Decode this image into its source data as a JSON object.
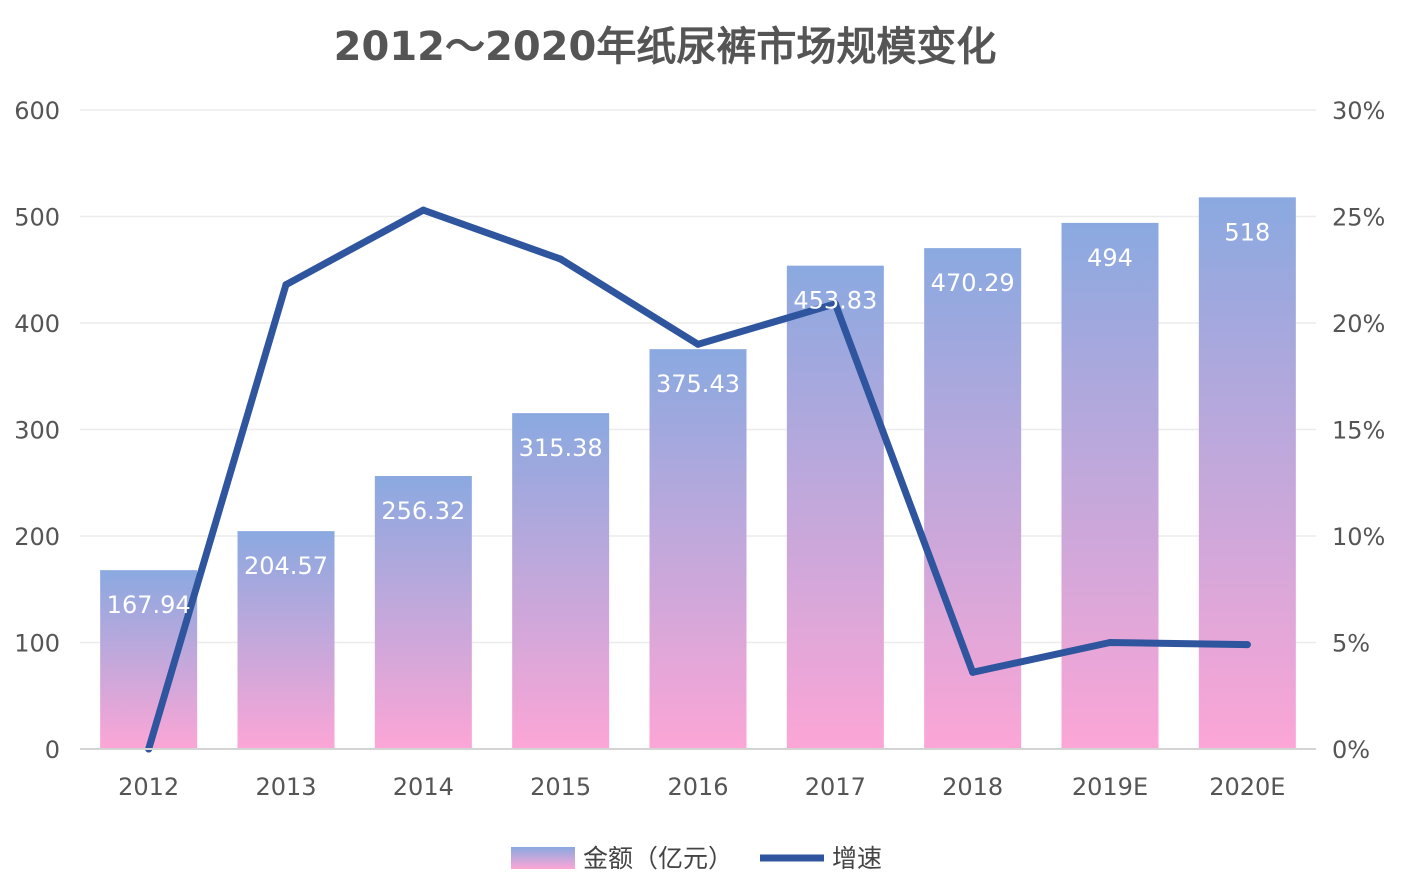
{
  "chart_data": {
    "type": "bar",
    "title": "2012～2020年纸尿裤市场规模变化",
    "categories": [
      "2012",
      "2013",
      "2014",
      "2015",
      "2016",
      "2017",
      "2018",
      "2019E",
      "2020E"
    ],
    "series": [
      {
        "name": "金额（亿元）",
        "type": "bar",
        "axis": "left",
        "values": [
          167.94,
          204.57,
          256.32,
          315.38,
          375.43,
          453.83,
          470.29,
          494,
          518
        ],
        "data_labels": [
          "167.94",
          "204.57",
          "256.32",
          "315.38",
          "375.43",
          "453.83",
          "470.29",
          "494",
          "518"
        ],
        "color_top": "#8aa9e0",
        "color_bottom": "#fca6d6"
      },
      {
        "name": "增速",
        "type": "line",
        "axis": "right",
        "values": [
          0,
          21.8,
          25.3,
          23.0,
          19.0,
          20.9,
          3.6,
          5.0,
          4.9
        ],
        "color": "#2f559e"
      }
    ],
    "y_left": {
      "range": [
        0,
        600
      ],
      "ticks": [
        0,
        100,
        200,
        300,
        400,
        500,
        600
      ],
      "tick_labels": [
        "0",
        "100",
        "200",
        "300",
        "400",
        "500",
        "600"
      ]
    },
    "y_right": {
      "range": [
        0,
        30
      ],
      "ticks": [
        0,
        5,
        10,
        15,
        20,
        25,
        30
      ],
      "tick_labels": [
        "0%",
        "5%",
        "10%",
        "15%",
        "20%",
        "25%",
        "30%"
      ]
    },
    "grid": true,
    "legend_position": "bottom-center",
    "xlabel": "",
    "ylabel": ""
  }
}
